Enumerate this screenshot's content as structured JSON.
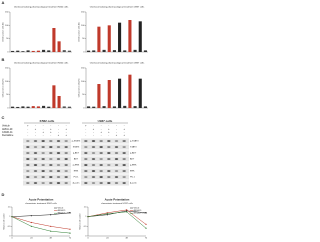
{
  "panels": [
    "A",
    "B",
    "C",
    "D"
  ],
  "charts": [
    {
      "title": "Chemosensitizing pharmacological treatment K562 cells",
      "ylabel": "CD11b positive cells (%)",
      "ylim": [
        0,
        150
      ],
      "yticks": [
        0,
        50,
        100,
        150
      ],
      "values": [
        4,
        5,
        3,
        6,
        4,
        5,
        8,
        6,
        90,
        40,
        7,
        5
      ],
      "colors": [
        "#333",
        "#333",
        "#333",
        "#333",
        "#c0392b",
        "#c0392b",
        "#333",
        "#333",
        "#c0392b",
        "#c0392b",
        "#555",
        "#555"
      ]
    },
    {
      "title": "Chemosensitizing pharmacological treatment U937 cells",
      "ylabel": "CD11b positive cells (%)",
      "ylim": [
        0,
        150
      ],
      "yticks": [
        0,
        50,
        100,
        150
      ],
      "values": [
        5,
        6,
        95,
        8,
        100,
        7,
        110,
        6,
        120,
        8,
        115,
        6
      ],
      "colors": [
        "#333",
        "#333",
        "#c0392b",
        "#333",
        "#c0392b",
        "#333",
        "#222",
        "#333",
        "#c0392b",
        "#333",
        "#222",
        "#333"
      ]
    },
    {
      "title": "Chemosensitizing pharmacological treatment K562 cells",
      "ylabel": "CD14 positive cells (%)",
      "ylim": [
        0,
        150
      ],
      "yticks": [
        0,
        50,
        100,
        150
      ],
      "values": [
        5,
        4,
        6,
        5,
        7,
        6,
        8,
        5,
        85,
        45,
        6,
        5
      ],
      "colors": [
        "#333",
        "#333",
        "#333",
        "#333",
        "#c0392b",
        "#c0392b",
        "#333",
        "#333",
        "#c0392b",
        "#c0392b",
        "#555",
        "#555"
      ]
    },
    {
      "title": "Chemosensitizing pharmacological treatment U937 cells",
      "ylabel": "CD14 positive cells (%)",
      "ylim": [
        0,
        150
      ],
      "yticks": [
        0,
        50,
        100,
        150
      ],
      "values": [
        6,
        5,
        90,
        7,
        105,
        6,
        110,
        8,
        125,
        7,
        110,
        6
      ],
      "colors": [
        "#333",
        "#333",
        "#c0392b",
        "#333",
        "#c0392b",
        "#333",
        "#222",
        "#333",
        "#c0392b",
        "#333",
        "#222",
        "#333"
      ]
    }
  ],
  "blot": {
    "groups": [
      "K562 cells",
      "U937 cells"
    ],
    "treatments": [
      {
        "name": "Vehicle",
        "color": "#222",
        "marks": [
          "+",
          "-",
          "-",
          "-",
          "-",
          "-",
          "+",
          "-",
          "-",
          "-",
          "-",
          "-"
        ]
      },
      {
        "name": "AMCA-29",
        "color": "#c0392b",
        "marks": [
          "-",
          "+",
          "-",
          "+",
          "-",
          "+",
          "-",
          "+",
          "-",
          "+",
          "-",
          "+"
        ]
      },
      {
        "name": "CAMO-41",
        "color": "#2e7d32",
        "marks": [
          "-",
          "-",
          "+",
          "+",
          "-",
          "-",
          "-",
          "-",
          "+",
          "+",
          "-",
          "-"
        ]
      },
      {
        "name": "Decitabine",
        "color": "#1565c0",
        "marks": [
          "-",
          "-",
          "-",
          "-",
          "+",
          "+",
          "-",
          "-",
          "-",
          "-",
          "+",
          "+"
        ]
      }
    ],
    "bands": [
      "p-STAT3",
      "STAT3",
      "p-AKT",
      "AKT",
      "p-ERK",
      "ERK",
      "PU.1",
      "β-actin"
    ]
  },
  "lines": [
    {
      "title": "Acute Potentiation",
      "subtitle": "chemotaxis treatment K562 cells",
      "ylabel": "Relative cell number",
      "categories": [
        "0",
        "24",
        "48",
        "72"
      ],
      "ylim": [
        0,
        1.5
      ],
      "yticks": [
        0,
        0.5,
        1,
        1.5
      ],
      "series": [
        {
          "name": "Vehicle",
          "color": "#222",
          "values": [
            1,
            1.05,
            1.1,
            1.2
          ]
        },
        {
          "name": "AMCA-29",
          "color": "#c0392b",
          "values": [
            1,
            0.7,
            0.5,
            0.35
          ]
        },
        {
          "name": "AMCA-29 + DAC",
          "color": "#2e7d32",
          "values": [
            1,
            0.5,
            0.25,
            0.15
          ]
        }
      ]
    },
    {
      "title": "Acute Potentiation",
      "subtitle": "chemotaxis treatment U937 cells",
      "ylabel": "Relative cell number",
      "categories": [
        "0",
        "24",
        "48",
        "72"
      ],
      "ylim": [
        0,
        1.5
      ],
      "yticks": [
        0,
        0.5,
        1,
        1.5
      ],
      "series": [
        {
          "name": "Vehicle",
          "color": "#222",
          "values": [
            1,
            1.1,
            1.3,
            1.2
          ]
        },
        {
          "name": "AMCA-29",
          "color": "#c0392b",
          "values": [
            1,
            1.2,
            1.35,
            0.6
          ]
        },
        {
          "name": "AMCA-29 + DAC",
          "color": "#2e7d32",
          "values": [
            1,
            1.15,
            1.25,
            0.4
          ]
        }
      ]
    }
  ]
}
